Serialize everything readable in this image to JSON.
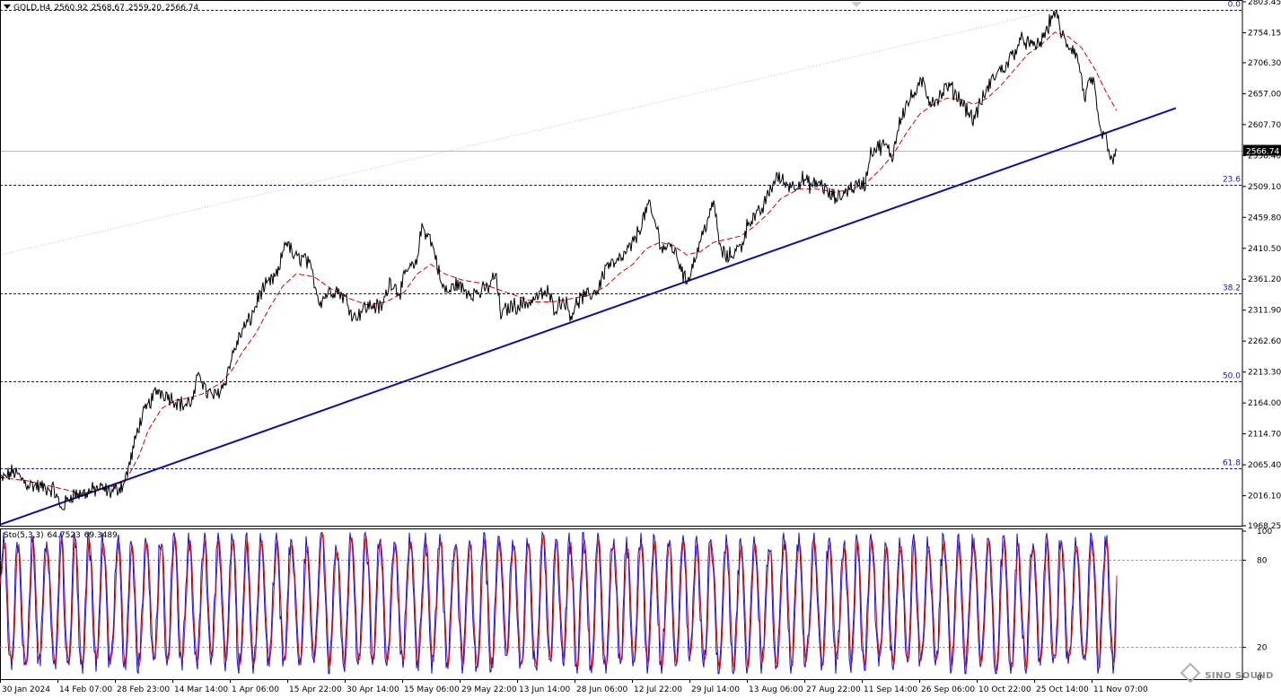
{
  "header": {
    "symbol": "GOLD,H4",
    "open": "2560.92",
    "high": "2568.67",
    "low": "2559.20",
    "close": "2566.74"
  },
  "stochastic": {
    "label": "Sto(5,3,3)",
    "main": "64.7523",
    "signal": "69.3489",
    "levels": [
      "100",
      "80",
      "20",
      "0"
    ]
  },
  "watermark": "SINO SOUND",
  "colors": {
    "price": "#000000",
    "ma": "#cc0000",
    "trendline": "#0a10a0",
    "fib_label": "#1a1a9c",
    "fib_line": "#1c1c6c",
    "sto_main": "#1010d0",
    "sto_signal": "#d01010",
    "current_price_box": "#000000"
  },
  "chart_data": {
    "type": "line",
    "title": "GOLD,H4",
    "current_price": 2566.74,
    "y_range": [
      1968.25,
      2803.45
    ],
    "y_ticks": [
      "2803.45",
      "2754.15",
      "2706.30",
      "2657.00",
      "2607.70",
      "2558.40",
      "2509.10",
      "2459.80",
      "2410.50",
      "2361.20",
      "2311.90",
      "2262.60",
      "2213.30",
      "2164.00",
      "2114.70",
      "2065.40",
      "2016.10",
      "1968.25"
    ],
    "x_tick_labels": [
      "30 Jan 2024",
      "14 Feb 07:00",
      "28 Feb 23:00",
      "14 Mar 14:00",
      "1 Apr 06:00",
      "15 Apr 22:00",
      "30 Apr 14:00",
      "15 May 06:00",
      "29 May 22:00",
      "13 Jun 14:00",
      "28 Jun 06:00",
      "12 Jul 22:00",
      "29 Jul 14:00",
      "13 Aug 06:00",
      "27 Aug 22:00",
      "11 Sep 14:00",
      "26 Sep 06:00",
      "10 Oct 22:00",
      "25 Oct 14:00",
      "11 Nov 07:00"
    ],
    "fibonacci": [
      {
        "level": "0.0",
        "price": 2790.0
      },
      {
        "level": "23.6",
        "price": 2511.0
      },
      {
        "level": "38.2",
        "price": 2338.0
      },
      {
        "level": "50.0",
        "price": 2198.0
      },
      {
        "level": "61.8",
        "price": 2060.0
      }
    ],
    "trendline": {
      "start_index": 0,
      "start_price": 1970,
      "end_index": 1310,
      "end_price": 2634
    },
    "series": [
      {
        "kind": "price",
        "values": [
          [
            0,
            2040
          ],
          [
            15,
            2055
          ],
          [
            30,
            2035
          ],
          [
            45,
            2030
          ],
          [
            60,
            2026
          ],
          [
            68,
            1995
          ],
          [
            80,
            2018
          ],
          [
            95,
            2020
          ],
          [
            110,
            2028
          ],
          [
            125,
            2022
          ],
          [
            138,
            2035
          ],
          [
            145,
            2070
          ],
          [
            155,
            2130
          ],
          [
            165,
            2160
          ],
          [
            175,
            2185
          ],
          [
            185,
            2178
          ],
          [
            195,
            2168
          ],
          [
            205,
            2160
          ],
          [
            215,
            2168
          ],
          [
            222,
            2215
          ],
          [
            230,
            2180
          ],
          [
            240,
            2175
          ],
          [
            250,
            2195
          ],
          [
            260,
            2245
          ],
          [
            270,
            2280
          ],
          [
            280,
            2300
          ],
          [
            290,
            2340
          ],
          [
            300,
            2355
          ],
          [
            310,
            2370
          ],
          [
            318,
            2425
          ],
          [
            328,
            2395
          ],
          [
            340,
            2395
          ],
          [
            348,
            2370
          ],
          [
            356,
            2325
          ],
          [
            365,
            2340
          ],
          [
            375,
            2345
          ],
          [
            385,
            2330
          ],
          [
            395,
            2300
          ],
          [
            405,
            2315
          ],
          [
            415,
            2320
          ],
          [
            425,
            2315
          ],
          [
            435,
            2360
          ],
          [
            445,
            2340
          ],
          [
            455,
            2380
          ],
          [
            463,
            2380
          ],
          [
            470,
            2445
          ],
          [
            478,
            2430
          ],
          [
            485,
            2400
          ],
          [
            492,
            2350
          ],
          [
            500,
            2340
          ],
          [
            508,
            2355
          ],
          [
            516,
            2345
          ],
          [
            525,
            2340
          ],
          [
            535,
            2340
          ],
          [
            545,
            2350
          ],
          [
            552,
            2370
          ],
          [
            558,
            2305
          ],
          [
            568,
            2318
          ],
          [
            578,
            2320
          ],
          [
            590,
            2325
          ],
          [
            600,
            2335
          ],
          [
            610,
            2340
          ],
          [
            618,
            2315
          ],
          [
            628,
            2330
          ],
          [
            636,
            2305
          ],
          [
            646,
            2330
          ],
          [
            656,
            2335
          ],
          [
            666,
            2345
          ],
          [
            676,
            2385
          ],
          [
            686,
            2385
          ],
          [
            696,
            2400
          ],
          [
            706,
            2420
          ],
          [
            716,
            2455
          ],
          [
            722,
            2480
          ],
          [
            730,
            2450
          ],
          [
            738,
            2410
          ],
          [
            748,
            2415
          ],
          [
            758,
            2385
          ],
          [
            764,
            2355
          ],
          [
            772,
            2385
          ],
          [
            782,
            2430
          ],
          [
            790,
            2465
          ],
          [
            796,
            2480
          ],
          [
            802,
            2410
          ],
          [
            810,
            2395
          ],
          [
            818,
            2405
          ],
          [
            826,
            2415
          ],
          [
            834,
            2455
          ],
          [
            842,
            2460
          ],
          [
            850,
            2475
          ],
          [
            858,
            2505
          ],
          [
            866,
            2525
          ],
          [
            874,
            2515
          ],
          [
            884,
            2510
          ],
          [
            894,
            2520
          ],
          [
            904,
            2510
          ],
          [
            914,
            2515
          ],
          [
            924,
            2495
          ],
          [
            934,
            2490
          ],
          [
            944,
            2505
          ],
          [
            954,
            2510
          ],
          [
            964,
            2515
          ],
          [
            970,
            2565
          ],
          [
            976,
            2570
          ],
          [
            986,
            2575
          ],
          [
            994,
            2555
          ],
          [
            1002,
            2615
          ],
          [
            1010,
            2640
          ],
          [
            1020,
            2660
          ],
          [
            1028,
            2675
          ],
          [
            1036,
            2645
          ],
          [
            1046,
            2650
          ],
          [
            1056,
            2670
          ],
          [
            1066,
            2655
          ],
          [
            1076,
            2635
          ],
          [
            1084,
            2615
          ],
          [
            1092,
            2640
          ],
          [
            1100,
            2665
          ],
          [
            1110,
            2690
          ],
          [
            1120,
            2700
          ],
          [
            1130,
            2725
          ],
          [
            1140,
            2745
          ],
          [
            1150,
            2730
          ],
          [
            1160,
            2740
          ],
          [
            1168,
            2765
          ],
          [
            1175,
            2790
          ],
          [
            1182,
            2755
          ],
          [
            1188,
            2735
          ],
          [
            1196,
            2728
          ],
          [
            1202,
            2705
          ],
          [
            1208,
            2650
          ],
          [
            1214,
            2675
          ],
          [
            1218,
            2680
          ],
          [
            1222,
            2625
          ],
          [
            1226,
            2595
          ],
          [
            1232,
            2585
          ],
          [
            1236,
            2560
          ],
          [
            1240,
            2545
          ],
          [
            1244,
            2566.74
          ]
        ]
      },
      {
        "kind": "ma",
        "values": [
          [
            0,
            2045
          ],
          [
            30,
            2040
          ],
          [
            60,
            2030
          ],
          [
            90,
            2020
          ],
          [
            120,
            2028
          ],
          [
            140,
            2040
          ],
          [
            155,
            2080
          ],
          [
            165,
            2120
          ],
          [
            180,
            2155
          ],
          [
            195,
            2168
          ],
          [
            210,
            2172
          ],
          [
            225,
            2178
          ],
          [
            245,
            2195
          ],
          [
            258,
            2215
          ],
          [
            270,
            2245
          ],
          [
            285,
            2275
          ],
          [
            300,
            2315
          ],
          [
            315,
            2350
          ],
          [
            330,
            2370
          ],
          [
            350,
            2365
          ],
          [
            370,
            2345
          ],
          [
            390,
            2330
          ],
          [
            410,
            2320
          ],
          [
            430,
            2325
          ],
          [
            450,
            2340
          ],
          [
            465,
            2370
          ],
          [
            480,
            2385
          ],
          [
            495,
            2370
          ],
          [
            515,
            2360
          ],
          [
            535,
            2355
          ],
          [
            555,
            2345
          ],
          [
            575,
            2335
          ],
          [
            595,
            2325
          ],
          [
            615,
            2325
          ],
          [
            635,
            2330
          ],
          [
            655,
            2335
          ],
          [
            675,
            2350
          ],
          [
            690,
            2370
          ],
          [
            705,
            2385
          ],
          [
            720,
            2410
          ],
          [
            735,
            2420
          ],
          [
            750,
            2415
          ],
          [
            765,
            2400
          ],
          [
            780,
            2405
          ],
          [
            795,
            2420
          ],
          [
            810,
            2425
          ],
          [
            825,
            2430
          ],
          [
            840,
            2445
          ],
          [
            855,
            2465
          ],
          [
            870,
            2490
          ],
          [
            890,
            2505
          ],
          [
            910,
            2505
          ],
          [
            930,
            2500
          ],
          [
            950,
            2505
          ],
          [
            965,
            2515
          ],
          [
            980,
            2535
          ],
          [
            995,
            2560
          ],
          [
            1010,
            2595
          ],
          [
            1025,
            2625
          ],
          [
            1040,
            2640
          ],
          [
            1055,
            2650
          ],
          [
            1070,
            2648
          ],
          [
            1085,
            2640
          ],
          [
            1100,
            2650
          ],
          [
            1115,
            2670
          ],
          [
            1130,
            2695
          ],
          [
            1145,
            2720
          ],
          [
            1160,
            2735
          ],
          [
            1175,
            2755
          ],
          [
            1190,
            2748
          ],
          [
            1205,
            2730
          ],
          [
            1220,
            2695
          ],
          [
            1232,
            2660
          ],
          [
            1244,
            2630
          ]
        ]
      }
    ],
    "stochastic_series": {
      "ylim": [
        0,
        100
      ],
      "levels": [
        80,
        20
      ],
      "main_last": 64.7523,
      "signal_last": 69.3489
    }
  }
}
